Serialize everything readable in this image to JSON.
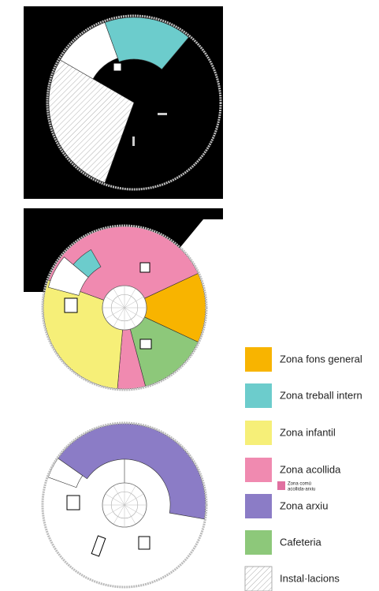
{
  "legend": {
    "items": [
      {
        "label": "Zona fons general",
        "color": "#f8b400"
      },
      {
        "label": "Zona treball intern",
        "color": "#6ccccc"
      },
      {
        "label": "Zona infantil",
        "color": "#f6ef78"
      },
      {
        "label": "Zona acollida",
        "color": "#f08ab0"
      },
      {
        "label": "Zona arxiu",
        "color": "#8b7cc6"
      },
      {
        "label": "Cafeteria",
        "color": "#8dc87a"
      },
      {
        "label": "Instal·lacions",
        "color": "hatch"
      }
    ],
    "sub_item": {
      "lines": [
        "Zona comú",
        "acollida-arxiu"
      ],
      "color": "#e070a0"
    }
  }
}
